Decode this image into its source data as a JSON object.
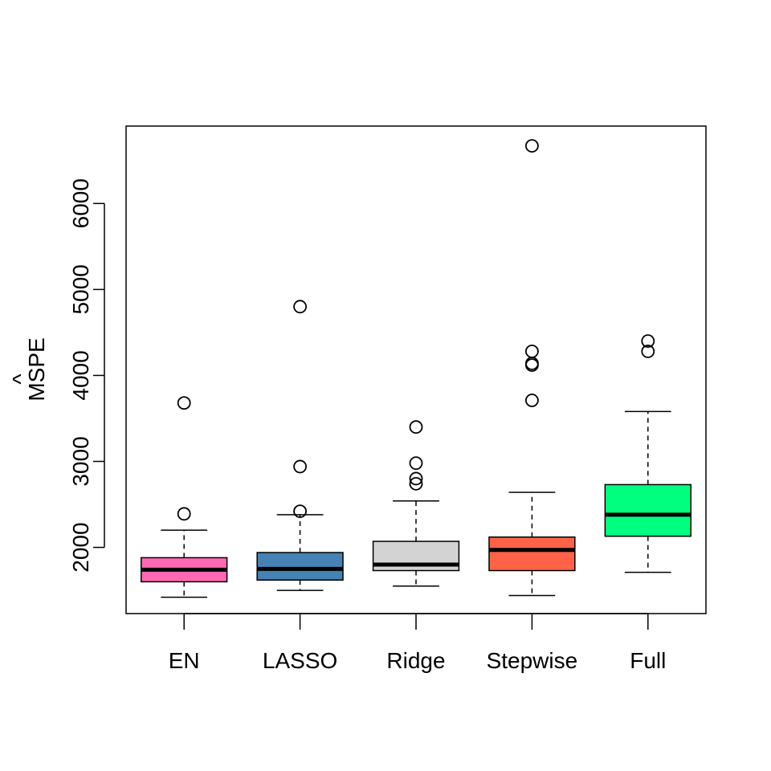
{
  "chart_data": {
    "type": "boxplot",
    "title": "",
    "xlabel": "",
    "ylabel": "MSPE",
    "ylabel_accent": "^",
    "ylim": [
      1230,
      6900
    ],
    "yticks": [
      2000,
      3000,
      4000,
      5000,
      6000
    ],
    "ytick_labels": [
      "2000",
      "3000",
      "4000",
      "5000",
      "6000"
    ],
    "grid": false,
    "categories": [
      "EN",
      "LASSO",
      "Ridge",
      "Stepwise",
      "Full"
    ],
    "boxes": [
      {
        "name": "EN",
        "color": "#ff69b4",
        "min": 1420,
        "q1": 1600,
        "median": 1740,
        "q3": 1880,
        "max": 2200,
        "outliers": [
          2390,
          3680
        ]
      },
      {
        "name": "LASSO",
        "color": "#4682b4",
        "min": 1500,
        "q1": 1620,
        "median": 1750,
        "q3": 1940,
        "max": 2380,
        "outliers": [
          2420,
          2940,
          4800
        ]
      },
      {
        "name": "Ridge",
        "color": "#d3d3d3",
        "min": 1550,
        "q1": 1730,
        "median": 1800,
        "q3": 2070,
        "max": 2540,
        "outliers": [
          2740,
          2800,
          2980,
          3400
        ]
      },
      {
        "name": "Stepwise",
        "color": "#ff6347",
        "min": 1440,
        "q1": 1730,
        "median": 1970,
        "q3": 2120,
        "max": 2640,
        "outliers": [
          3710,
          4120,
          4140,
          4280,
          6670
        ]
      },
      {
        "name": "Full",
        "color": "#00ff7f",
        "min": 1710,
        "q1": 2130,
        "median": 2380,
        "q3": 2730,
        "max": 3580,
        "outliers": [
          4280,
          4400
        ]
      }
    ]
  }
}
